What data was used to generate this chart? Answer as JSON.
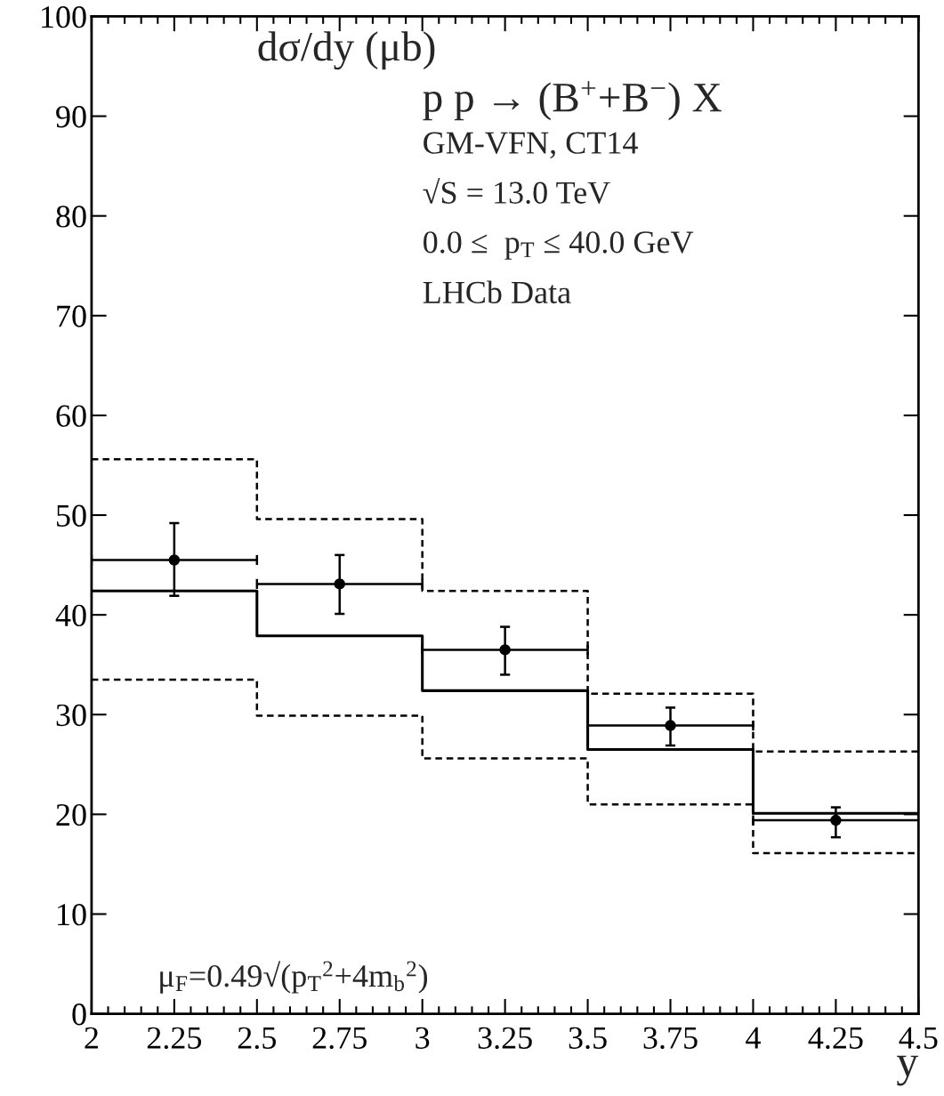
{
  "chart_data": {
    "type": "step",
    "title": "dσ/dy (μb)",
    "xlabel": "y",
    "xlim": [
      2,
      4.5
    ],
    "ylim": [
      0,
      100
    ],
    "xticks": [
      2,
      2.25,
      2.5,
      2.75,
      3,
      3.25,
      3.5,
      3.75,
      4,
      4.25,
      4.5
    ],
    "yticks": [
      0,
      10,
      20,
      30,
      40,
      50,
      60,
      70,
      80,
      90,
      100
    ],
    "grid": false,
    "legend": false,
    "annotations": [
      "p p → (B$^{+}$+B$^{−}$) X",
      "GM-VFN, CT14",
      "√S = 13.0 TeV",
      "0.0 ≤  p$_{T}$ ≤ 40.0 GeV",
      "LHCb Data",
      "μ$_{F}$=0.49√(p$_{T}$$^{2}$+4m$_{b}$$^{2}$)"
    ],
    "series": [
      {
        "color": "#000000",
        "line_style": "solid",
        "x": [
          2,
          2.5,
          3,
          3.5,
          4,
          4.5
        ],
        "values": [
          42.4,
          37.9,
          32.4,
          26.5,
          20.1,
          20.1
        ]
      },
      {
        "color": "#000000",
        "line_style": "dashed",
        "x": [
          2,
          2.5,
          3,
          3.5,
          4,
          4.5
        ],
        "values": [
          55.6,
          49.6,
          42.4,
          32.1,
          26.3,
          26.3
        ]
      },
      {
        "color": "#000000",
        "line_style": "dashed",
        "x": [
          2,
          2.5,
          3,
          3.5,
          4,
          4.5
        ],
        "values": [
          33.5,
          29.9,
          25.6,
          21.0,
          16.1,
          16.1
        ]
      },
      {
        "type": "scatter",
        "color": "#000000",
        "marker": "circle",
        "x": [
          2.25,
          2.75,
          3.25,
          3.75,
          4.25
        ],
        "values": [
          45.5,
          43.1,
          36.5,
          28.9,
          19.4
        ],
        "errors": [
          [
            41.9,
            49.2
          ],
          [
            40.1,
            46.0
          ],
          [
            34.0,
            38.8
          ],
          [
            26.9,
            30.7
          ],
          [
            17.7,
            20.7
          ]
        ],
        "xerrors": [
          [
            2.0,
            2.5
          ],
          [
            2.5,
            3.0
          ],
          [
            3.0,
            3.5
          ],
          [
            3.5,
            4.0
          ],
          [
            4.0,
            4.5
          ]
        ]
      }
    ]
  }
}
